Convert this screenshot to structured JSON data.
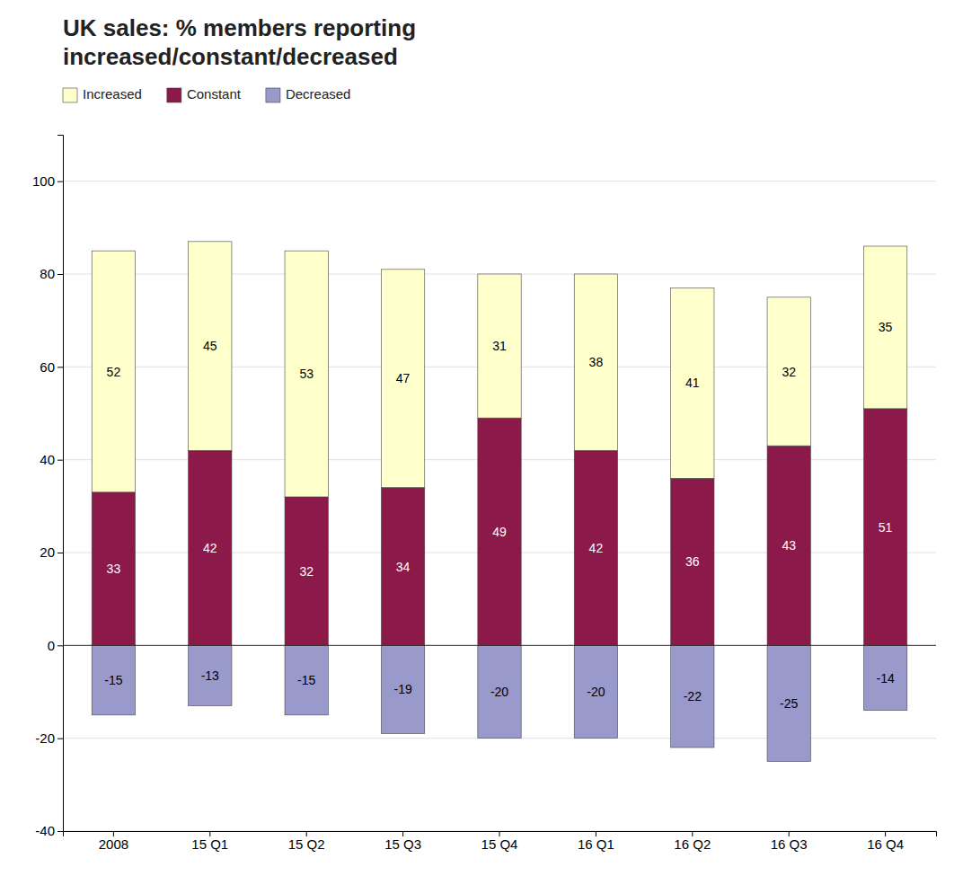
{
  "chart_data": {
    "type": "bar",
    "title": "UK sales: % members reporting\nincreased/constant/decreased",
    "categories": [
      "2008",
      "15 Q1",
      "15 Q2",
      "15 Q3",
      "15 Q4",
      "16 Q1",
      "16 Q2",
      "16 Q3",
      "16 Q4"
    ],
    "series": [
      {
        "name": "Increased",
        "color": "#FFFFCC",
        "values": [
          52,
          45,
          53,
          47,
          31,
          38,
          41,
          32,
          35
        ]
      },
      {
        "name": "Constant",
        "color": "#8B1A4A",
        "values": [
          33,
          42,
          32,
          34,
          49,
          42,
          36,
          43,
          51
        ]
      },
      {
        "name": "Decreased",
        "color": "#9999CC",
        "values": [
          -15,
          -13,
          -15,
          -19,
          -20,
          -20,
          -22,
          -25,
          -14
        ]
      }
    ],
    "ylim": [
      -40,
      110
    ],
    "yticks": [
      -40,
      -20,
      0,
      20,
      40,
      60,
      80,
      100
    ],
    "stacked": true,
    "grid": true,
    "legend": "upper left",
    "data_labels": true
  }
}
